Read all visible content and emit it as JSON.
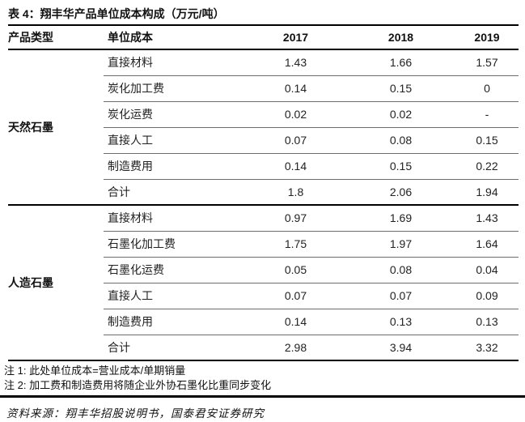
{
  "title": "表 4：翔丰华产品单位成本构成（万元/吨）",
  "table": {
    "columns": [
      "产品类型",
      "单位成本",
      "2017",
      "2018",
      "2019"
    ],
    "sections": [
      {
        "group": "天然石墨",
        "rows": [
          {
            "label": "直接材料",
            "values": [
              "1.43",
              "1.66",
              "1.57"
            ]
          },
          {
            "label": "炭化加工费",
            "values": [
              "0.14",
              "0.15",
              "0"
            ]
          },
          {
            "label": "炭化运费",
            "values": [
              "0.02",
              "0.02",
              "-"
            ]
          },
          {
            "label": "直接人工",
            "values": [
              "0.07",
              "0.08",
              "0.15"
            ]
          },
          {
            "label": "制造费用",
            "values": [
              "0.14",
              "0.15",
              "0.22"
            ]
          },
          {
            "label": "合计",
            "values": [
              "1.8",
              "2.06",
              "1.94"
            ]
          }
        ]
      },
      {
        "group": "人造石墨",
        "rows": [
          {
            "label": "直接材料",
            "values": [
              "0.97",
              "1.69",
              "1.43"
            ]
          },
          {
            "label": "石墨化加工费",
            "values": [
              "1.75",
              "1.97",
              "1.64"
            ]
          },
          {
            "label": "石墨化运费",
            "values": [
              "0.05",
              "0.08",
              "0.04"
            ]
          },
          {
            "label": "直接人工",
            "values": [
              "0.07",
              "0.07",
              "0.09"
            ]
          },
          {
            "label": "制造费用",
            "values": [
              "0.14",
              "0.13",
              "0.13"
            ]
          },
          {
            "label": "合计",
            "values": [
              "2.98",
              "3.94",
              "3.32"
            ]
          }
        ]
      }
    ]
  },
  "notes": [
    "注 1: 此处单位成本=营业成本/单期销量",
    "注 2: 加工费和制造费用将随企业外协石墨化比重同步变化"
  ],
  "source": "资料来源：翔丰华招股说明书，国泰君安证券研究",
  "colors": {
    "text": "#1a1a1a",
    "heavy_rule": "#000000",
    "light_rule": "#6e6e6e",
    "background": "#ffffff"
  }
}
